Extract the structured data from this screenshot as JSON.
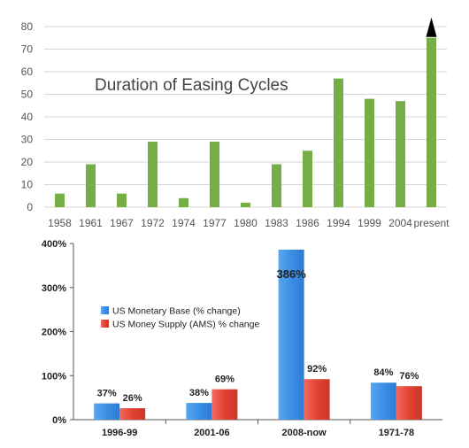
{
  "chart_data": [
    {
      "type": "bar",
      "title": "Duration of Easing Cycles",
      "xlabel": "",
      "ylabel": "",
      "ylim": [
        0,
        80
      ],
      "yticks": [
        0,
        10,
        20,
        30,
        40,
        50,
        60,
        70,
        80
      ],
      "categories": [
        "1958",
        "1961",
        "1967",
        "1972",
        "1974",
        "1977",
        "1980",
        "1983",
        "1986",
        "1994",
        "1999",
        "2004",
        "present"
      ],
      "values": [
        6,
        19,
        6,
        29,
        4,
        29,
        2,
        19,
        25,
        57,
        48,
        47,
        75
      ],
      "grid": true,
      "bar_color": "#76ad46",
      "arrow_on": "present",
      "arrow_color": "#000000"
    },
    {
      "type": "bar",
      "title": "",
      "xlabel": "",
      "ylabel": "",
      "ylim": [
        0,
        400
      ],
      "yticks": [
        "0%",
        "100%",
        "200%",
        "300%",
        "400%"
      ],
      "categories": [
        "1996-99",
        "2001-06",
        "2008-now",
        "1971-78"
      ],
      "series": [
        {
          "name": "US Monetary Base (% change)",
          "values": [
            37,
            38,
            386,
            84
          ],
          "labels": [
            "37%",
            "38%",
            "386%",
            "84%"
          ],
          "color": "#3b8fe6"
        },
        {
          "name": "US Money Supply (AMS) % change",
          "values": [
            26,
            69,
            92,
            76
          ],
          "labels": [
            "26%",
            "69%",
            "92%",
            "76%"
          ],
          "color": "#e34232"
        }
      ],
      "grid": false,
      "legend_position": "left-middle"
    }
  ]
}
